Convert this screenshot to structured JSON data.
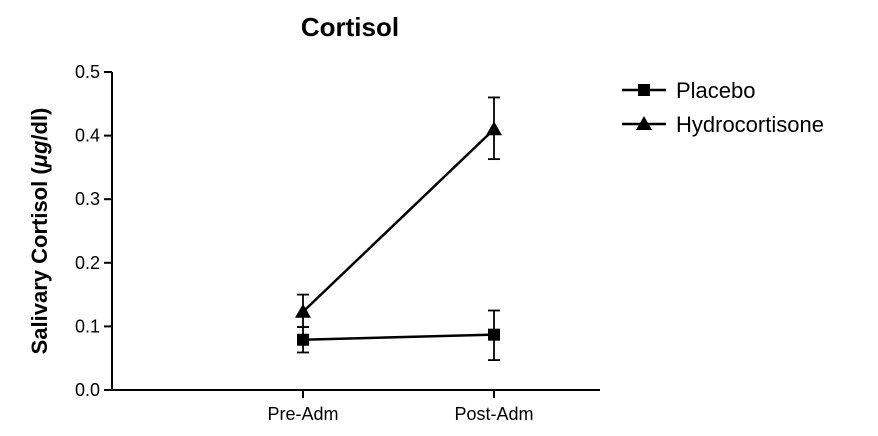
{
  "chart_data": {
    "type": "line",
    "title": "Cortisol",
    "xlabel": "",
    "ylabel": "Salivary Cortisol (μg/dl)",
    "ylabel_parts": {
      "before": "Salivary Cortisol (",
      "unit": "μg",
      "after": "/dl)"
    },
    "categories": [
      "Pre-Adm",
      "Post-Adm"
    ],
    "ylim": [
      0,
      0.5
    ],
    "yticks": [
      "0.0",
      "0.1",
      "0.2",
      "0.3",
      "0.4",
      "0.5"
    ],
    "legend_position": "top-right",
    "series": [
      {
        "name": "Placebo",
        "marker": "square",
        "values": [
          0.079,
          0.087
        ],
        "err_low": [
          0.059,
          0.047
        ],
        "err_high": [
          0.099,
          0.125
        ]
      },
      {
        "name": "Hydrocortisone",
        "marker": "triangle",
        "values": [
          0.123,
          0.41
        ],
        "err_low": [
          0.099,
          0.363
        ],
        "err_high": [
          0.15,
          0.46
        ]
      }
    ]
  }
}
